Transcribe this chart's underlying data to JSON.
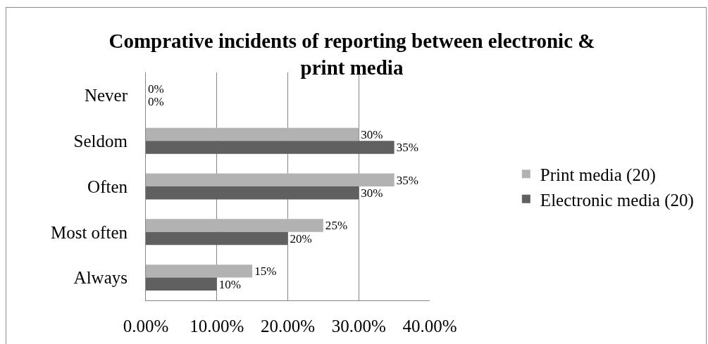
{
  "chart_data": {
    "type": "bar",
    "orientation": "horizontal",
    "title": "Comprative incidents of reporting between electronic & print media",
    "categories": [
      "Never",
      "Seldom",
      "Often",
      "Most often",
      "Always"
    ],
    "series": [
      {
        "name": "Print media (20)",
        "color": "#b2b2b2",
        "values": [
          0,
          30,
          35,
          25,
          15
        ],
        "value_labels": [
          "0%",
          "30%",
          "35%",
          "25%",
          "15%"
        ]
      },
      {
        "name": "Electronic media (20)",
        "color": "#606060",
        "values": [
          0,
          35,
          30,
          20,
          10
        ],
        "value_labels": [
          "0%",
          "35%",
          "30%",
          "20%",
          "10%"
        ]
      }
    ],
    "xlim": [
      0,
      40
    ],
    "xticks": [
      {
        "value": 0,
        "label": "0.00%"
      },
      {
        "value": 10,
        "label": "10.00%"
      },
      {
        "value": 20,
        "label": "20.00%"
      },
      {
        "value": 30,
        "label": "30.00%"
      },
      {
        "value": 40,
        "label": "40.00%"
      }
    ],
    "grid": "x",
    "legend": "right"
  }
}
